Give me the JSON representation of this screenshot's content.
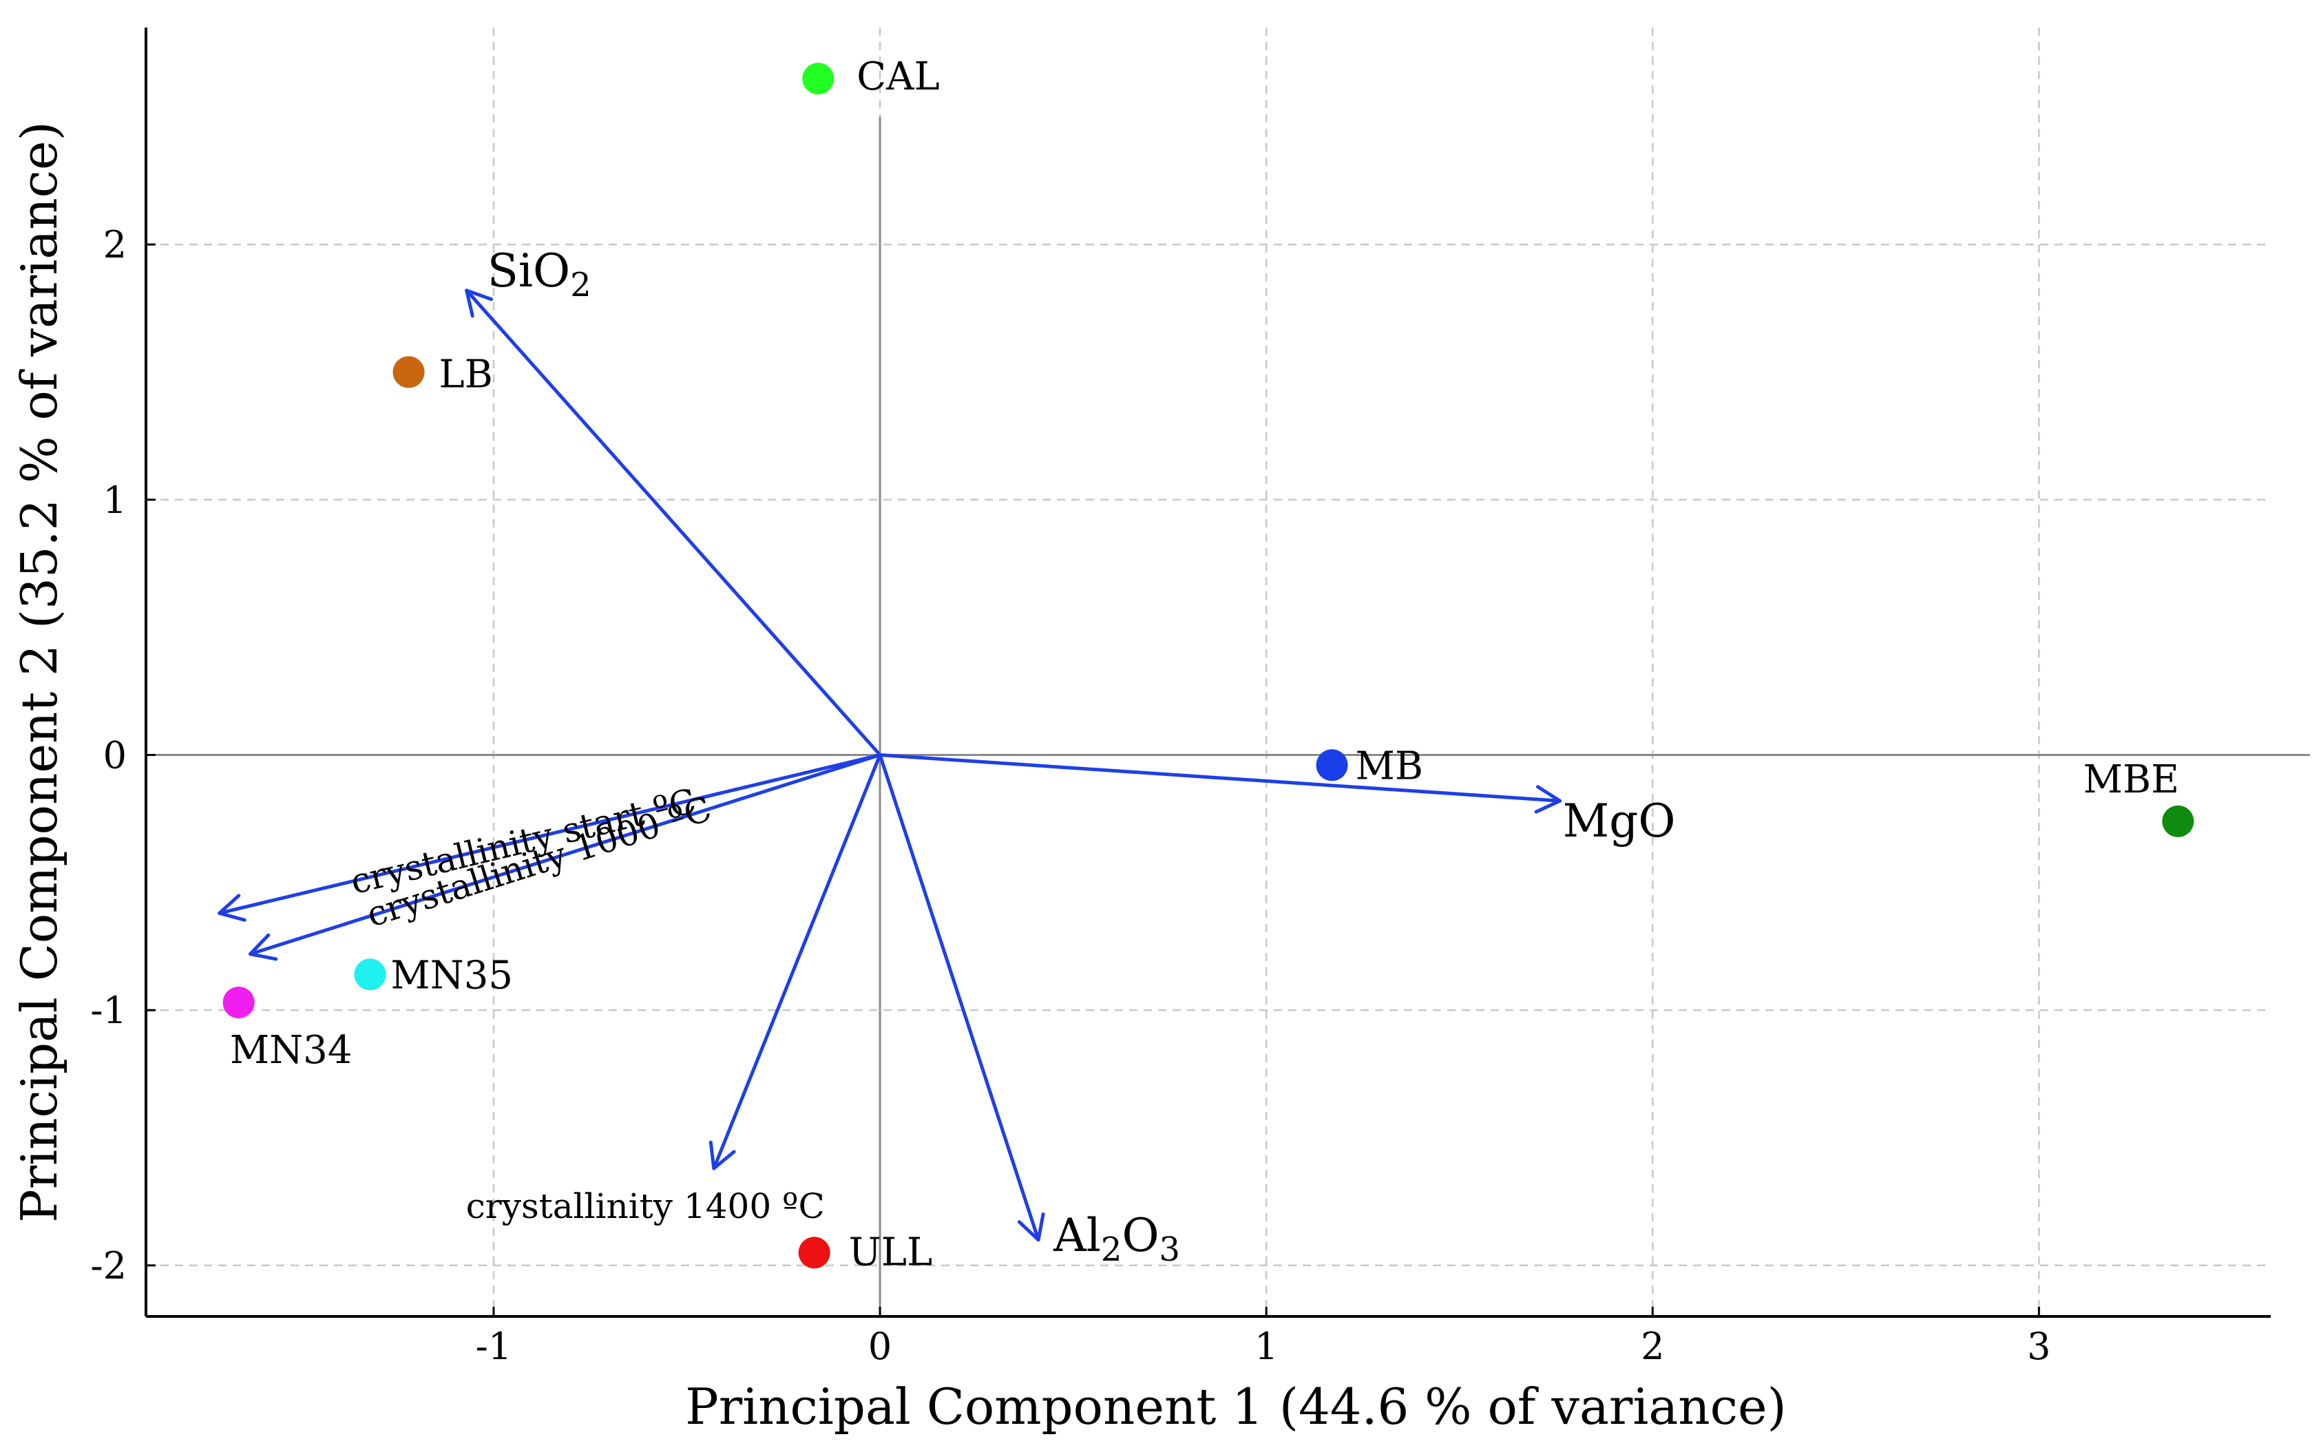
{
  "chart_data": {
    "type": "scatter",
    "xlabel": "Principal Component 1 (44.6 % of variance)",
    "ylabel": "Principal Component 2 (35.2 % of variance)",
    "xlim": [
      -1.9,
      3.6
    ],
    "ylim": [
      -2.2,
      2.85
    ],
    "xticks": [
      -1,
      0,
      1,
      2,
      3
    ],
    "yticks": [
      -2,
      -1,
      0,
      1,
      2
    ],
    "xtick_labels": [
      "-1",
      "0",
      "1",
      "2",
      "3"
    ],
    "ytick_labels": [
      "-2",
      "-1",
      "0",
      "1",
      "2"
    ],
    "grid": true,
    "points": [
      {
        "label": "CAL",
        "x": -0.16,
        "y": 2.65,
        "color": "#22ff22"
      },
      {
        "label": "LB",
        "x": -1.22,
        "y": 1.5,
        "color": "#c8650f"
      },
      {
        "label": "MB",
        "x": 1.17,
        "y": -0.04,
        "color": "#1a3fe8"
      },
      {
        "label": "MBE",
        "x": 3.36,
        "y": -0.26,
        "color": "#0f8c0f"
      },
      {
        "label": "MN35",
        "x": -1.32,
        "y": -0.86,
        "color": "#1ff0f0"
      },
      {
        "label": "MN34",
        "x": -1.66,
        "y": -0.97,
        "color": "#f01ff0"
      },
      {
        "label": "ULL",
        "x": -0.17,
        "y": -1.95,
        "color": "#ee1111"
      }
    ],
    "vectors": [
      {
        "label": "SiO",
        "subscript": "2",
        "x": -1.07,
        "y": 1.82
      },
      {
        "label": "MgO",
        "subscript": "",
        "x": 1.76,
        "y": -0.18
      },
      {
        "label": "Al",
        "subscript": "2",
        "label2": "O",
        "subscript2": "3",
        "x": 0.41,
        "y": -1.9
      },
      {
        "label": "crystallinity start ºC",
        "x": -1.71,
        "y": -0.62
      },
      {
        "label": "crystallinity 1000 ºC",
        "x": -1.63,
        "y": -0.78
      },
      {
        "label": "crystallinity 1400 ºC",
        "x": -0.43,
        "y": -1.62
      }
    ],
    "vector_color": "#1f3fe6"
  }
}
